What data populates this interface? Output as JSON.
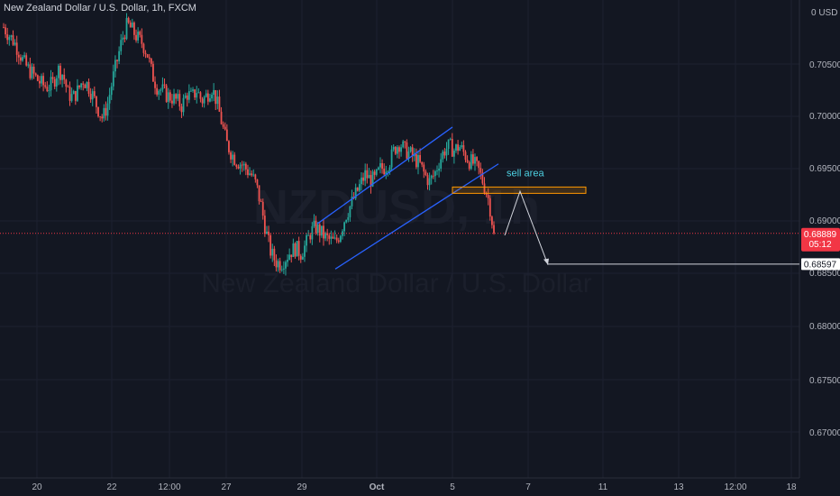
{
  "header": {
    "title": "New Zealand Dollar / U.S. Dollar, 1h, FXCM"
  },
  "watermark": {
    "symbol": "NZDUSD, 1h",
    "description": "New Zealand Dollar / U.S. Dollar"
  },
  "price_axis": {
    "currency_label": "0 USD 0",
    "ticks": [
      "0.70500",
      "0.70000",
      "0.69500",
      "0.69000",
      "0.68500",
      "0.68000",
      "0.67500",
      "0.67000"
    ]
  },
  "time_axis": {
    "ticks": [
      "20",
      "22",
      "12:00",
      "27",
      "29",
      "Oct",
      "5",
      "7",
      "11",
      "13",
      "12:00",
      "18"
    ]
  },
  "current_price": {
    "value": "0.68889",
    "countdown": "05:12",
    "color": "#f23645"
  },
  "target_price": {
    "value": "0.68597"
  },
  "annotations": {
    "sell_zone_label": "sell area",
    "sell_zone_color": "#ff9800",
    "channel_color": "#2962ff",
    "projection_color": "#d1d4dc"
  },
  "colors": {
    "up": "#26a69a",
    "down": "#ef5350",
    "background": "#131722"
  },
  "chart_data": {
    "type": "candlestick",
    "symbol": "NZDUSD",
    "timeframe": "1h",
    "ylim": [
      0.6665,
      0.7095
    ],
    "close_path": [
      0.7085,
      0.7078,
      0.7072,
      0.7063,
      0.7052,
      0.7045,
      0.704,
      0.7034,
      0.703,
      0.7028,
      0.7032,
      0.7045,
      0.704,
      0.7022,
      0.7018,
      0.7025,
      0.7035,
      0.703,
      0.702,
      0.7008,
      0.6998,
      0.7012,
      0.7035,
      0.7055,
      0.7075,
      0.7088,
      0.7082,
      0.7075,
      0.707,
      0.706,
      0.704,
      0.7028,
      0.7025,
      0.702,
      0.7018,
      0.7015,
      0.701,
      0.7022,
      0.7018,
      0.7025,
      0.7015,
      0.702,
      0.7028,
      0.7015,
      0.6995,
      0.6975,
      0.6965,
      0.6958,
      0.6955,
      0.695,
      0.6945,
      0.6935,
      0.6915,
      0.689,
      0.687,
      0.6862,
      0.686,
      0.6866,
      0.6872,
      0.6875,
      0.687,
      0.6878,
      0.689,
      0.6895,
      0.689,
      0.6885,
      0.6882,
      0.688,
      0.689,
      0.6905,
      0.6915,
      0.6925,
      0.6935,
      0.6945,
      0.694,
      0.694,
      0.695,
      0.6952,
      0.6958,
      0.697,
      0.6975,
      0.6968,
      0.6965,
      0.696,
      0.6955,
      0.6945,
      0.6938,
      0.6945,
      0.6958,
      0.6968,
      0.6972,
      0.6968,
      0.6972,
      0.6965,
      0.6958,
      0.6955,
      0.6948,
      0.6935,
      0.692,
      0.6889
    ],
    "channel": {
      "upper": {
        "from_date": "Sep 29",
        "from_price": 0.6898,
        "to_date": "Oct 5",
        "to_price": 0.699
      },
      "lower": {
        "from_date": "Sep 30",
        "from_price": 0.6855,
        "to_date": "Oct 6",
        "to_price": 0.6955
      }
    },
    "zones": [
      {
        "label": "sell area",
        "price_top": 0.6933,
        "price_bottom": 0.6927
      }
    ],
    "projection": [
      {
        "price": 0.6887
      },
      {
        "price": 0.6929
      },
      {
        "price": 0.6859
      }
    ],
    "horizontal_lines": [
      {
        "price": 0.68889,
        "style": "dotted",
        "label": "current price"
      },
      {
        "price": 0.68597,
        "style": "solid",
        "label": "target"
      }
    ]
  }
}
